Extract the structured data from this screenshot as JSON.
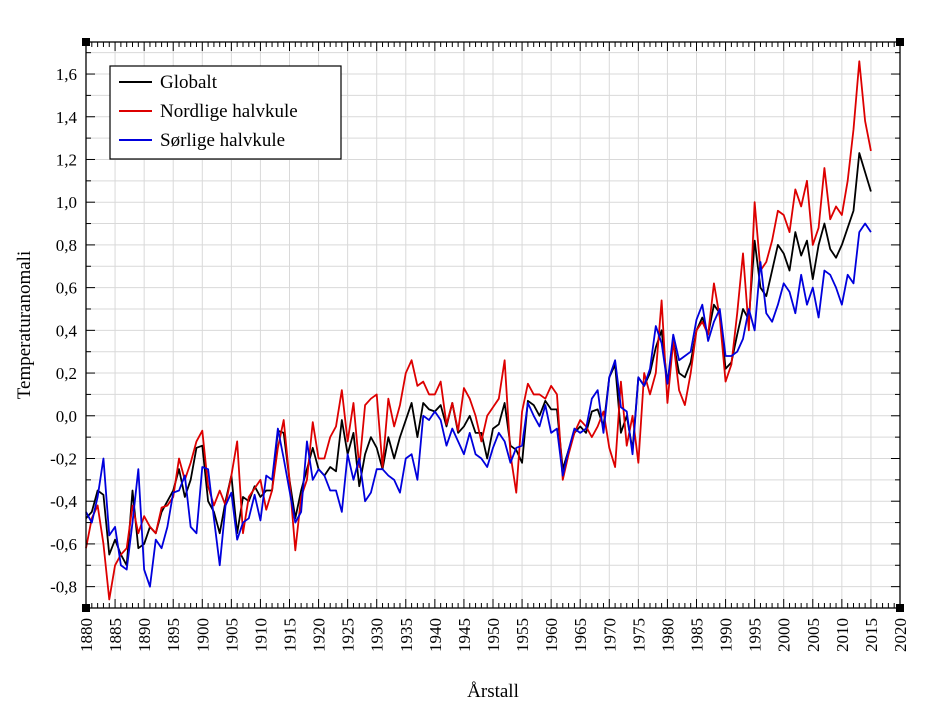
{
  "chart_data": {
    "type": "line",
    "title": "",
    "xlabel": "Årstall",
    "ylabel": "Temperaturanomali",
    "xlim": [
      1880,
      2020
    ],
    "ylim": [
      -0.9,
      1.75
    ],
    "x_ticks": [
      1880,
      1885,
      1890,
      1895,
      1900,
      1905,
      1910,
      1915,
      1920,
      1925,
      1930,
      1935,
      1940,
      1945,
      1950,
      1955,
      1960,
      1965,
      1970,
      1975,
      1980,
      1985,
      1990,
      1995,
      2000,
      2005,
      2010,
      2015,
      2020
    ],
    "y_ticks": [
      -0.8,
      -0.6,
      -0.4,
      -0.2,
      0.0,
      0.2,
      0.4,
      0.6,
      0.8,
      1.0,
      1.2,
      1.4,
      1.6
    ],
    "y_tick_labels": [
      "-0,8",
      "-0,6",
      "-0,4",
      "-0,2",
      "0,0",
      "0,2",
      "0,4",
      "0,6",
      "0,8",
      "1,0",
      "1,2",
      "1,4",
      "1,6"
    ],
    "grid": true,
    "legend_position": "top-left",
    "x_start": 1880,
    "series": [
      {
        "name": "Globalt",
        "color": "#000000",
        "values": [
          -0.48,
          -0.45,
          -0.35,
          -0.37,
          -0.65,
          -0.58,
          -0.65,
          -0.7,
          -0.35,
          -0.62,
          -0.6,
          -0.52,
          -0.55,
          -0.45,
          -0.4,
          -0.35,
          -0.25,
          -0.38,
          -0.3,
          -0.15,
          -0.14,
          -0.4,
          -0.45,
          -0.55,
          -0.4,
          -0.28,
          -0.55,
          -0.38,
          -0.4,
          -0.33,
          -0.38,
          -0.35,
          -0.35,
          -0.07,
          -0.08,
          -0.3,
          -0.48,
          -0.35,
          -0.25,
          -0.15,
          -0.25,
          -0.28,
          -0.24,
          -0.26,
          -0.02,
          -0.18,
          -0.08,
          -0.33,
          -0.18,
          -0.1,
          -0.15,
          -0.25,
          -0.1,
          -0.2,
          -0.1,
          -0.02,
          0.06,
          -0.1,
          0.06,
          0.03,
          0.02,
          0.05,
          -0.05,
          0.06,
          -0.08,
          -0.05,
          0.0,
          -0.08,
          -0.08,
          -0.2,
          -0.06,
          -0.04,
          0.06,
          -0.14,
          -0.16,
          -0.22,
          0.07,
          0.05,
          0.0,
          0.07,
          0.03,
          0.03,
          -0.25,
          -0.16,
          -0.08,
          -0.05,
          -0.08,
          0.02,
          0.03,
          -0.05,
          0.18,
          0.24,
          -0.08,
          0.0,
          -0.16,
          0.18,
          0.14,
          0.2,
          0.32,
          0.4,
          0.15,
          0.35,
          0.2,
          0.18,
          0.25,
          0.4,
          0.46,
          0.38,
          0.52,
          0.48,
          0.22,
          0.25,
          0.38,
          0.5,
          0.45,
          0.82,
          0.6,
          0.56,
          0.68,
          0.8,
          0.76,
          0.68,
          0.86,
          0.75,
          0.82,
          0.64,
          0.8,
          0.9,
          0.78,
          0.74,
          0.8,
          0.88,
          0.96,
          1.23,
          1.14,
          1.05
        ]
      },
      {
        "name": "Nordlige halvkule",
        "color": "#dd0000",
        "values": [
          -0.62,
          -0.48,
          -0.42,
          -0.6,
          -0.86,
          -0.7,
          -0.65,
          -0.62,
          -0.42,
          -0.55,
          -0.47,
          -0.52,
          -0.55,
          -0.43,
          -0.42,
          -0.38,
          -0.2,
          -0.3,
          -0.22,
          -0.12,
          -0.07,
          -0.33,
          -0.42,
          -0.35,
          -0.42,
          -0.28,
          -0.12,
          -0.55,
          -0.38,
          -0.34,
          -0.3,
          -0.44,
          -0.35,
          -0.15,
          -0.02,
          -0.3,
          -0.63,
          -0.38,
          -0.3,
          -0.03,
          -0.2,
          -0.2,
          -0.1,
          -0.05,
          0.12,
          -0.12,
          0.06,
          -0.24,
          0.05,
          0.08,
          0.1,
          -0.24,
          0.08,
          -0.05,
          0.05,
          0.2,
          0.26,
          0.14,
          0.16,
          0.1,
          0.1,
          0.16,
          -0.04,
          0.06,
          -0.07,
          0.13,
          0.08,
          0.0,
          -0.12,
          0.0,
          0.04,
          0.08,
          0.26,
          -0.18,
          -0.36,
          0.02,
          0.15,
          0.1,
          0.1,
          0.08,
          0.14,
          0.1,
          -0.3,
          -0.18,
          -0.08,
          -0.02,
          -0.05,
          -0.1,
          -0.05,
          0.02,
          -0.15,
          -0.24,
          0.16,
          -0.14,
          0.0,
          -0.22,
          0.2,
          0.1,
          0.2,
          0.54,
          0.06,
          0.35,
          0.12,
          0.05,
          0.2,
          0.4,
          0.44,
          0.38,
          0.62,
          0.46,
          0.16,
          0.24,
          0.48,
          0.76,
          0.4,
          1.0,
          0.68,
          0.72,
          0.82,
          0.96,
          0.94,
          0.86,
          1.06,
          0.98,
          1.1,
          0.8,
          0.88,
          1.16,
          0.92,
          0.98,
          0.94,
          1.1,
          1.34,
          1.66,
          1.38,
          1.24
        ]
      },
      {
        "name": "Sørlige halvkule",
        "color": "#0000dd",
        "values": [
          -0.45,
          -0.5,
          -0.38,
          -0.2,
          -0.56,
          -0.52,
          -0.7,
          -0.72,
          -0.5,
          -0.25,
          -0.72,
          -0.8,
          -0.58,
          -0.62,
          -0.52,
          -0.36,
          -0.35,
          -0.28,
          -0.52,
          -0.55,
          -0.24,
          -0.25,
          -0.48,
          -0.7,
          -0.42,
          -0.36,
          -0.58,
          -0.5,
          -0.48,
          -0.37,
          -0.49,
          -0.28,
          -0.3,
          -0.06,
          -0.2,
          -0.35,
          -0.5,
          -0.45,
          -0.12,
          -0.3,
          -0.25,
          -0.28,
          -0.35,
          -0.35,
          -0.45,
          -0.18,
          -0.3,
          -0.2,
          -0.4,
          -0.36,
          -0.25,
          -0.25,
          -0.28,
          -0.3,
          -0.36,
          -0.2,
          -0.18,
          -0.3,
          0.0,
          -0.02,
          0.02,
          -0.02,
          -0.14,
          -0.06,
          -0.12,
          -0.18,
          -0.08,
          -0.18,
          -0.2,
          -0.24,
          -0.15,
          -0.08,
          -0.12,
          -0.22,
          -0.15,
          -0.14,
          0.06,
          0.0,
          -0.05,
          0.05,
          -0.08,
          -0.06,
          -0.28,
          -0.16,
          -0.06,
          -0.08,
          -0.06,
          0.08,
          0.12,
          -0.08,
          0.18,
          0.26,
          0.04,
          0.02,
          -0.18,
          0.18,
          0.14,
          0.22,
          0.42,
          0.34,
          0.15,
          0.38,
          0.26,
          0.28,
          0.3,
          0.45,
          0.52,
          0.35,
          0.44,
          0.5,
          0.28,
          0.28,
          0.3,
          0.36,
          0.5,
          0.4,
          0.72,
          0.48,
          0.44,
          0.52,
          0.62,
          0.58,
          0.48,
          0.66,
          0.52,
          0.6,
          0.46,
          0.68,
          0.66,
          0.6,
          0.52,
          0.66,
          0.62,
          0.86,
          0.9,
          0.86
        ]
      }
    ]
  }
}
